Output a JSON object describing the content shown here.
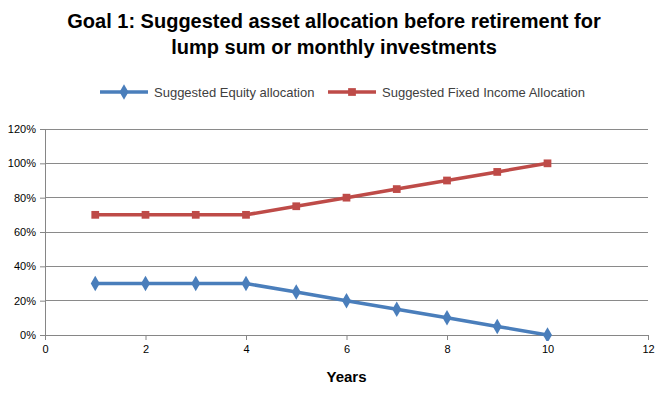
{
  "chart_data": {
    "type": "line",
    "title": "Goal 1: Suggested asset allocation before retirement for lump sum or monthly investments",
    "xlabel": "Years",
    "x": [
      1,
      2,
      3,
      4,
      5,
      6,
      7,
      8,
      9,
      10
    ],
    "series": [
      {
        "name": "Suggested Equity allocation",
        "color": "#4a7ebb",
        "marker": "diamond",
        "line_style": "solid",
        "values": [
          30,
          30,
          30,
          30,
          25,
          20,
          15,
          10,
          5,
          0
        ]
      },
      {
        "name": "Suggested Fixed Income Allocation",
        "color": "#be4b48",
        "marker": "square",
        "line_style": "solid",
        "values": [
          70,
          70,
          70,
          70,
          75,
          80,
          85,
          90,
          95,
          100
        ]
      }
    ],
    "xlim": [
      0,
      12
    ],
    "xticks": [
      0,
      2,
      4,
      6,
      8,
      10,
      12
    ],
    "ylim": [
      0,
      120
    ],
    "yticks": [
      {
        "value": 0,
        "label": "0%"
      },
      {
        "value": 20,
        "label": "20%"
      },
      {
        "value": 40,
        "label": "40%"
      },
      {
        "value": 60,
        "label": "60%"
      },
      {
        "value": 80,
        "label": "80%"
      },
      {
        "value": 100,
        "label": "100%"
      },
      {
        "value": 120,
        "label": "120%"
      }
    ],
    "grid": true,
    "legend": "top"
  }
}
